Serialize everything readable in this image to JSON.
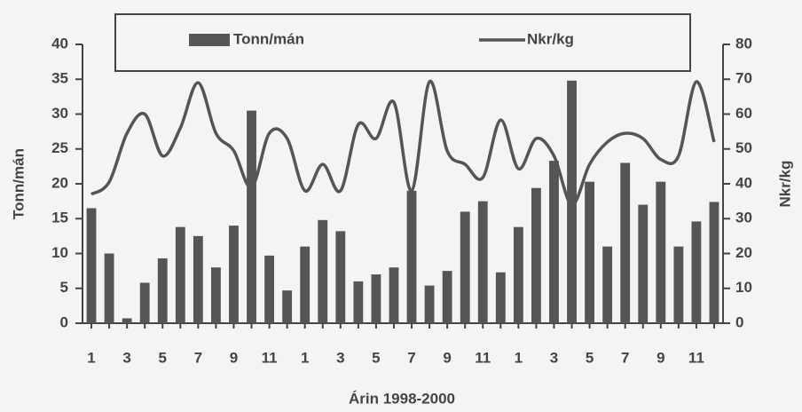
{
  "chart_data": {
    "type": "bar_line",
    "x_label": "Árin 1998-2000",
    "y_label": "Tonn/mán",
    "y2_label": "Nkr/kg",
    "categories": [
      "1",
      null,
      "3",
      null,
      "5",
      null,
      "7",
      null,
      "9",
      null,
      "11",
      null,
      "1",
      null,
      "3",
      null,
      "5",
      null,
      "7",
      null,
      "9",
      null,
      "11",
      null,
      "1",
      null,
      "3",
      null,
      "5",
      null,
      "7",
      null,
      "9",
      null,
      "11",
      null
    ],
    "series": [
      {
        "name": "Tonn/mán",
        "type": "bar",
        "color": "#555555",
        "values": [
          16.5,
          10,
          0.7,
          5.8,
          9.3,
          13.8,
          12.5,
          8,
          14,
          30.5,
          9.7,
          4.7,
          11,
          14.8,
          13.2,
          6,
          7,
          8,
          19,
          5.4,
          7.5,
          16,
          17.5,
          7.3,
          13.8,
          19.4,
          23.3,
          34.8,
          20.3,
          11,
          23,
          17,
          20.3,
          11,
          14.6,
          17.4
        ]
      },
      {
        "name": "Nkr/kg",
        "type": "line",
        "axis": "y2",
        "color": "#555555",
        "values": [
          37,
          40.5,
          54.5,
          60,
          48,
          56,
          69,
          54.5,
          49.5,
          39,
          54.5,
          53,
          38,
          45.6,
          38,
          57,
          53,
          63.4,
          38,
          69.3,
          49.4,
          45.6,
          41.8,
          58.3,
          44.3,
          53,
          48,
          34,
          45.6,
          52,
          54.5,
          53,
          47,
          48,
          69.3,
          52
        ]
      }
    ],
    "ylim": [
      0,
      40
    ],
    "yticks": [
      0,
      5,
      10,
      15,
      20,
      25,
      30,
      35,
      40
    ],
    "y2lim": [
      0,
      80
    ],
    "y2ticks": [
      0,
      10,
      20,
      30,
      40,
      50,
      60,
      70,
      80
    ],
    "legend": "top"
  }
}
